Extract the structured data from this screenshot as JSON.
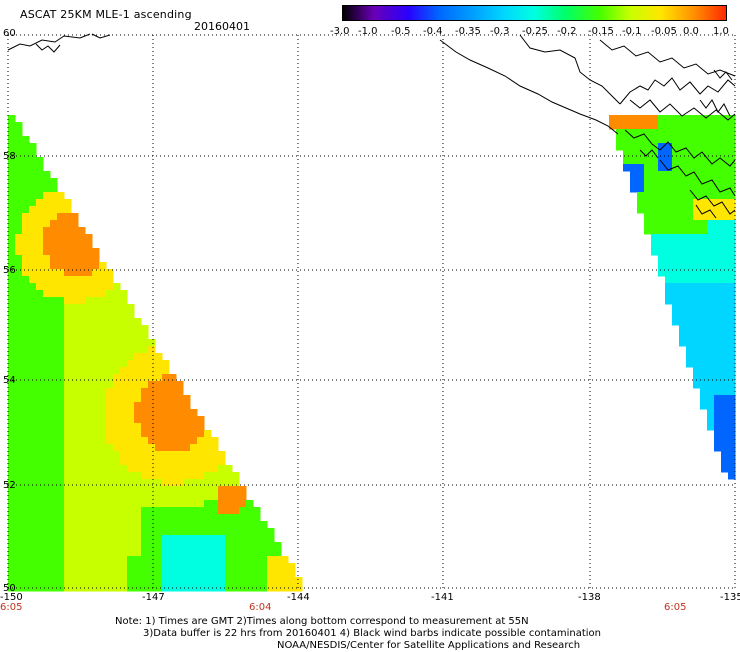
{
  "header": {
    "title": "ASCAT 25KM MLE-1 ascending",
    "date": "20160401"
  },
  "colorbar": {
    "labels": [
      "-3.0",
      "-1.0",
      "-0.5",
      "-0.4",
      "-0.35",
      "-0.3",
      "-0.25",
      "-0.2",
      "-0.15",
      "-0.1",
      "-0.05",
      "0.0",
      "1.0"
    ],
    "colors": [
      "#000000",
      "#6a00b5",
      "#2a00ff",
      "#0066ff",
      "#0099ff",
      "#00d6ff",
      "#00ffe0",
      "#00ff6a",
      "#44ff00",
      "#c8ff00",
      "#ffe600",
      "#ff8c00",
      "#ff2800"
    ]
  },
  "map": {
    "lat_range": [
      50,
      60
    ],
    "lon_range": [
      -150,
      -135
    ],
    "lat_ticks": [
      "60",
      "58",
      "56",
      "54",
      "52",
      "50"
    ],
    "lon_ticks": [
      "-150",
      "-147",
      "-144",
      "-141",
      "-138",
      "-135"
    ],
    "times": [
      "6:05",
      "6:04",
      "6:05"
    ],
    "swath_colors": {
      "orange": "#ff8c00",
      "yellow": "#ffe600",
      "lime": "#c8ff00",
      "green": "#44ff00",
      "aqua": "#00ffe0",
      "cyan": "#00d6ff",
      "blue": "#0066ff"
    }
  },
  "notes": {
    "line1": "Note: 1) Times are GMT 2)Times along bottom correspond to measurement at 55N",
    "line2": "3)Data buffer is 22 hrs from 20160401 4) Black wind barbs indicate possible contamination",
    "line3": "NOAA/NESDIS/Center for Satellite Applications and Research"
  }
}
